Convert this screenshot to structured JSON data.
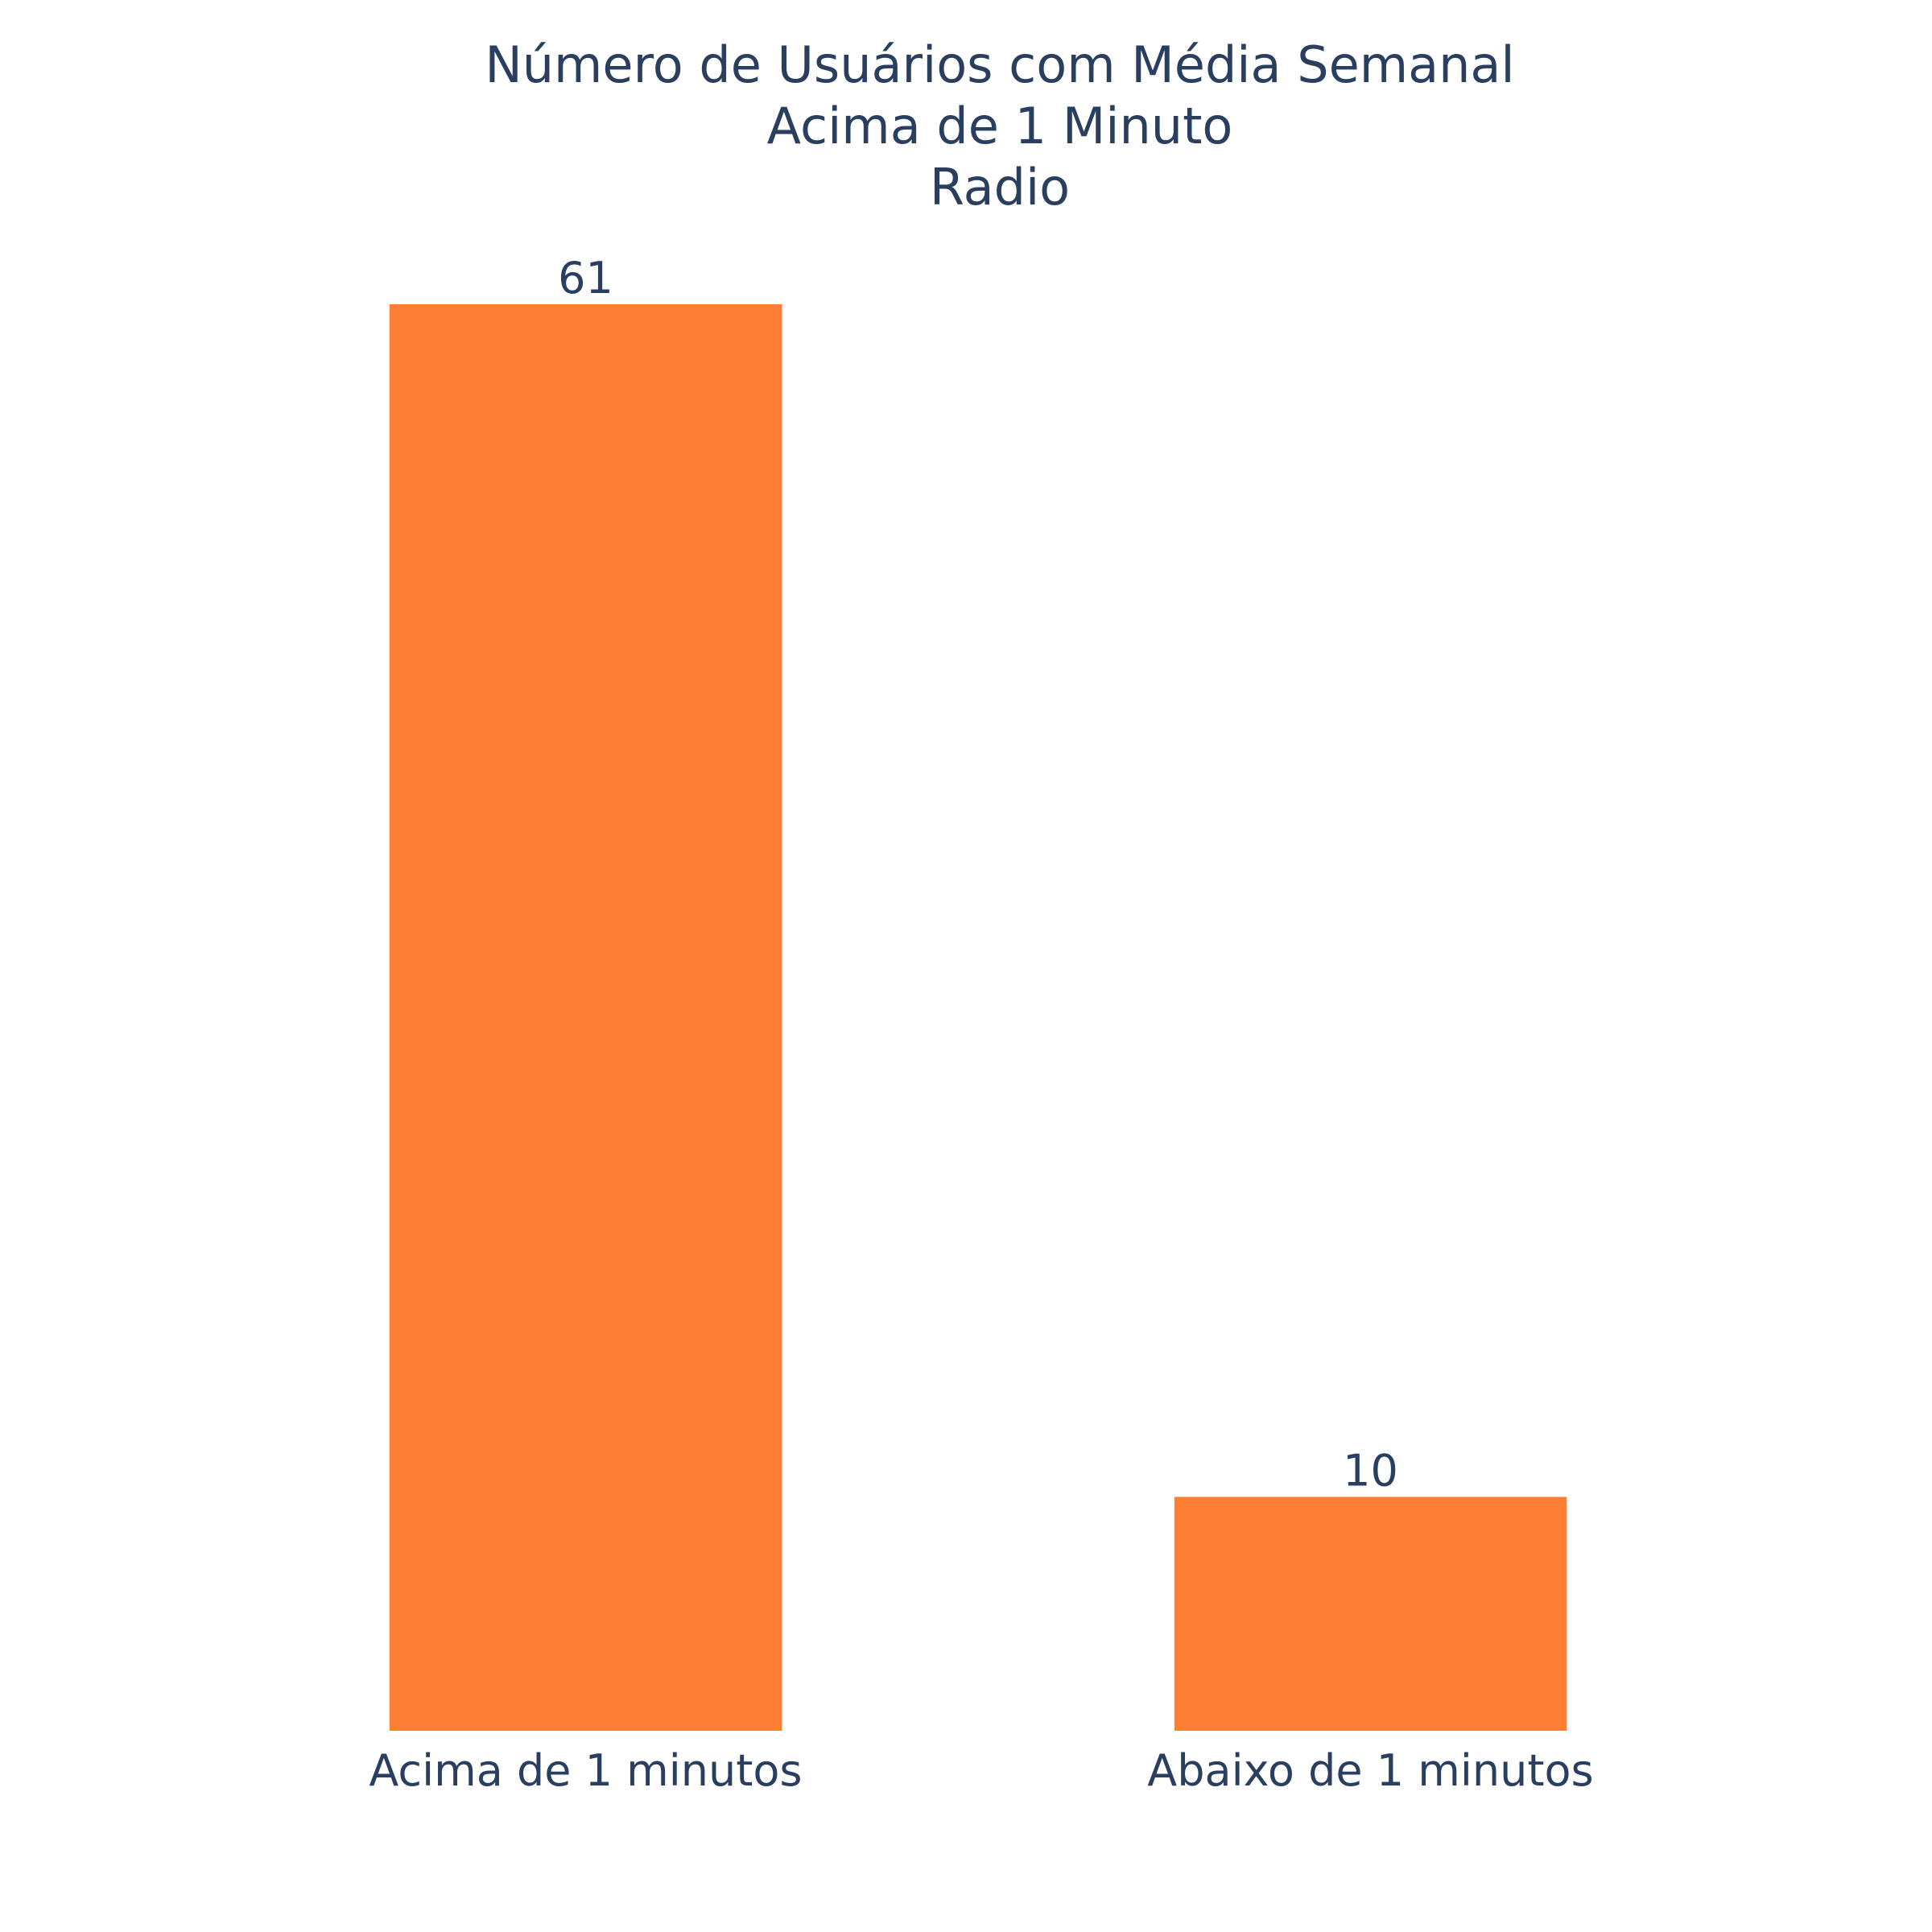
{
  "chart_data": {
    "type": "bar",
    "title_lines": [
      "Número de Usuários com Média Semanal",
      "Acima de 1 Minuto",
      "Radio"
    ],
    "categories": [
      "Acima de 1 minutos",
      "Abaixo de 1 minutos"
    ],
    "values": [
      61,
      10
    ],
    "value_labels": [
      "61",
      "10"
    ],
    "xlabel": "",
    "ylabel": "",
    "ylim": [
      0,
      61
    ],
    "grid": false,
    "bar_color": "#fe7f33",
    "text_color": "#2a3f5f"
  }
}
